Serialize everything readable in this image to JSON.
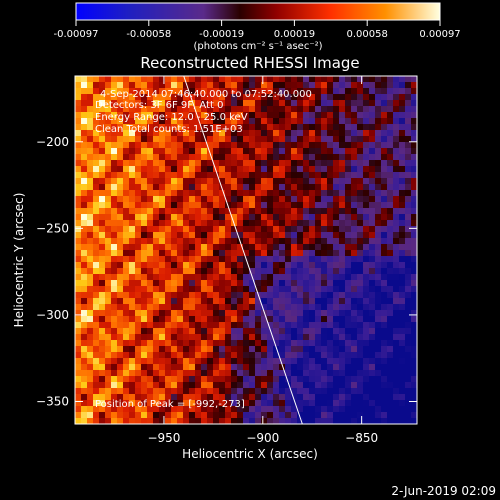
{
  "colorbar": {
    "ticks": [
      "-0.00097",
      "-0.00058",
      "-0.00019",
      "0.00019",
      "0.00058",
      "0.00097"
    ],
    "unit_label": "(photons cm⁻² s⁻¹ asec⁻²)",
    "colors": [
      "#0000ff",
      "#2020c0",
      "#5a2a8a",
      "#4a0000",
      "#b00000",
      "#ff3000",
      "#ff8800",
      "#ffd000",
      "#ffffe0"
    ]
  },
  "chart_data": {
    "type": "heatmap",
    "title": "Reconstructed RHESSI Image",
    "xlabel": "Heliocentric X (arcsec)",
    "ylabel": "Heliocentric Y (arcsec)",
    "xlim": [
      -995,
      -822
    ],
    "ylim": [
      -363,
      -162
    ],
    "xticks": [
      -950,
      -900,
      -850
    ],
    "yticks": [
      -350,
      -300,
      -250,
      -200
    ],
    "color_range": [
      -0.00097,
      0.00097
    ],
    "peak": [
      -992,
      -273
    ],
    "limb_line": [
      [
        -940,
        -162
      ],
      [
        -880,
        -363
      ]
    ],
    "annotations": [
      "4-Sep-2014 07:46:40.000 to 07:52:40.000",
      "Detectors: 3F 6F 9F, Att 0",
      "Energy Range: 12.0 - 25.0 keV",
      "Clean     Total counts: 1.51E+03"
    ],
    "peak_label": "Position of Peak = [-992,-273]"
  },
  "footer": {
    "date": "2-Jun-2019 02:09"
  }
}
